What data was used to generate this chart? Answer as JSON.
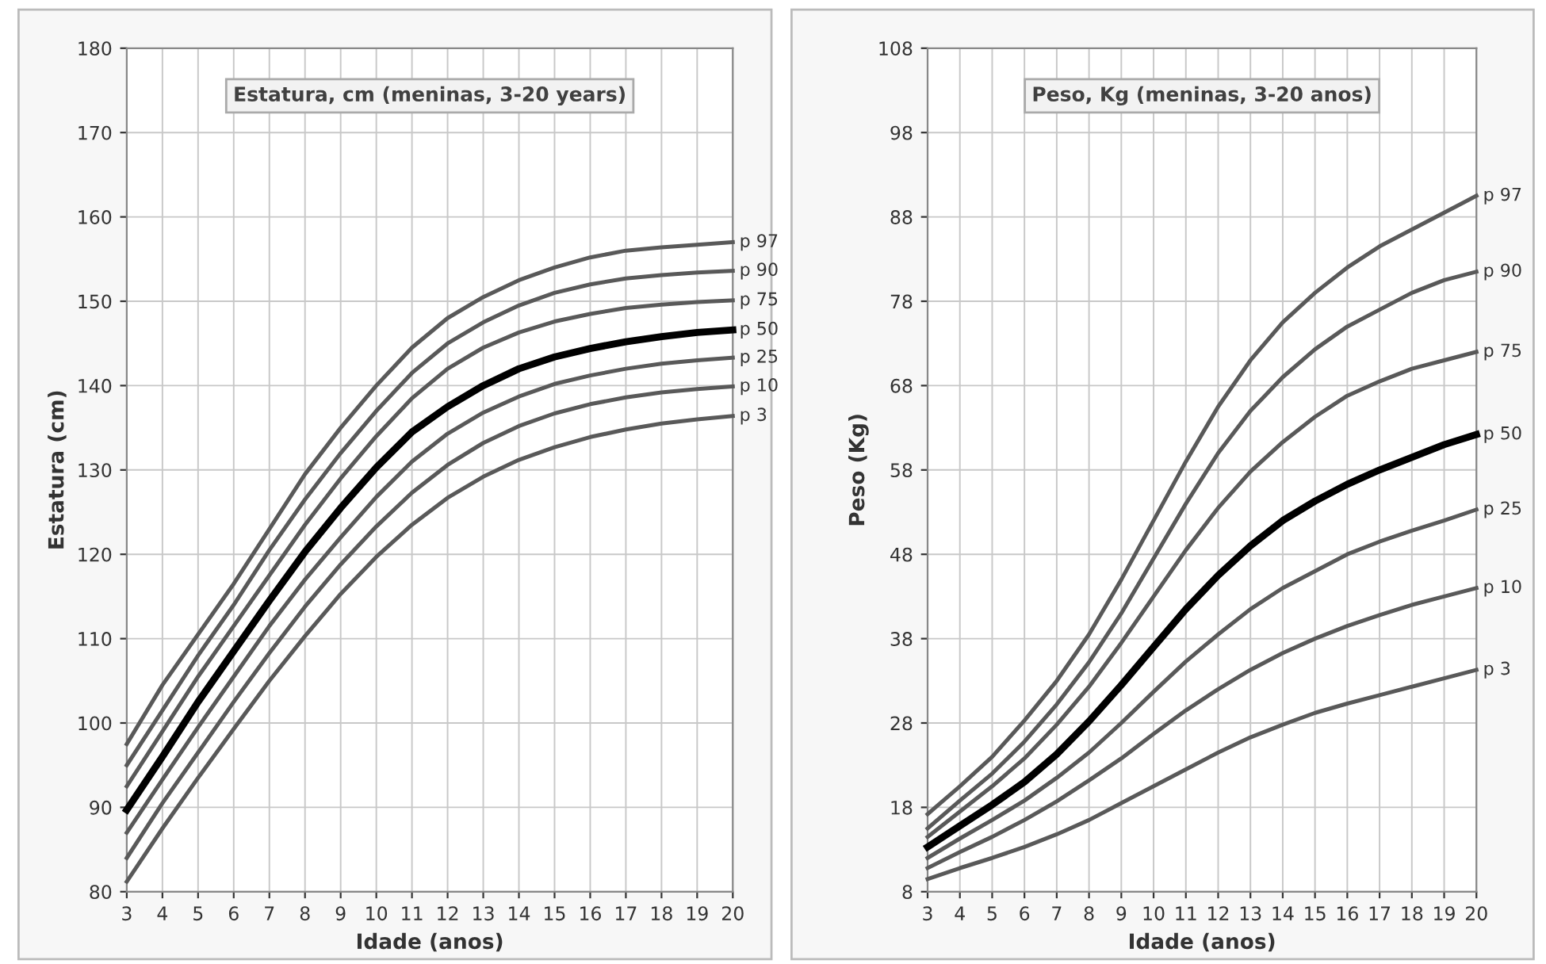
{
  "chart_data": [
    {
      "type": "line",
      "annotations": [
        "Estatura, cm (meninas, 3-20 years)"
      ],
      "xlabel": "Idade (anos)",
      "ylabel": "Estatura (cm)",
      "x": [
        3,
        4,
        5,
        6,
        7,
        8,
        9,
        10,
        11,
        12,
        13,
        14,
        15,
        16,
        17,
        18,
        19,
        20
      ],
      "xlim": [
        3,
        20
      ],
      "xticks": [
        3,
        4,
        5,
        6,
        7,
        8,
        9,
        10,
        11,
        12,
        13,
        14,
        15,
        16,
        17,
        18,
        19,
        20
      ],
      "ylim": [
        80,
        180
      ],
      "yticks": [
        80,
        90,
        100,
        110,
        120,
        130,
        140,
        150,
        160,
        170,
        180
      ],
      "grid": true,
      "series": [
        {
          "name": "p 97",
          "color": "#595959",
          "values": [
            97.5,
            104.5,
            110.5,
            116.5,
            123,
            129.5,
            135,
            140,
            144.5,
            148,
            150.5,
            152.5,
            154,
            155.2,
            156,
            156.4,
            156.7,
            157
          ]
        },
        {
          "name": "p 90",
          "color": "#595959",
          "values": [
            95,
            101.5,
            108,
            114,
            120.5,
            126.5,
            132,
            137,
            141.5,
            145,
            147.5,
            149.5,
            151,
            152,
            152.7,
            153.1,
            153.4,
            153.6
          ]
        },
        {
          "name": "p 75",
          "color": "#595959",
          "values": [
            92.5,
            99,
            105.5,
            111.5,
            117.5,
            123.5,
            129,
            134,
            138.5,
            142,
            144.5,
            146.3,
            147.6,
            148.5,
            149.2,
            149.6,
            149.9,
            150.1
          ]
        },
        {
          "name": "p 50",
          "color": "#000000",
          "values": [
            89.7,
            96,
            102.5,
            108.5,
            114.5,
            120.3,
            125.5,
            130.3,
            134.5,
            137.5,
            140,
            142,
            143.4,
            144.4,
            145.2,
            145.8,
            146.3,
            146.6
          ]
        },
        {
          "name": "p 25",
          "color": "#595959",
          "values": [
            87,
            93.3,
            99.5,
            105.5,
            111.5,
            117,
            122,
            126.8,
            131,
            134.3,
            136.8,
            138.7,
            140.2,
            141.2,
            142,
            142.6,
            143,
            143.3
          ]
        },
        {
          "name": "p 10",
          "color": "#595959",
          "values": [
            84,
            90.5,
            96.5,
            102.5,
            108.3,
            113.8,
            118.8,
            123.3,
            127.3,
            130.6,
            133.2,
            135.2,
            136.7,
            137.8,
            138.6,
            139.2,
            139.6,
            139.9
          ]
        },
        {
          "name": "p 3",
          "color": "#595959",
          "values": [
            81.2,
            87.5,
            93.5,
            99.3,
            105,
            110.3,
            115.3,
            119.7,
            123.5,
            126.7,
            129.2,
            131.2,
            132.7,
            133.9,
            134.8,
            135.5,
            136,
            136.4
          ]
        }
      ]
    },
    {
      "type": "line",
      "annotations": [
        "Peso, Kg (meninas, 3-20 anos)"
      ],
      "xlabel": "Idade (anos)",
      "ylabel": "Peso (Kg)",
      "x": [
        3,
        4,
        5,
        6,
        7,
        8,
        9,
        10,
        11,
        12,
        13,
        14,
        15,
        16,
        17,
        18,
        19,
        20
      ],
      "xlim": [
        3,
        20
      ],
      "xticks": [
        3,
        4,
        5,
        6,
        7,
        8,
        9,
        10,
        11,
        12,
        13,
        14,
        15,
        16,
        17,
        18,
        19,
        20
      ],
      "ylim": [
        8,
        108
      ],
      "yticks": [
        8,
        18,
        28,
        38,
        48,
        58,
        68,
        78,
        88,
        98,
        108
      ],
      "grid": true,
      "series": [
        {
          "name": "p 97",
          "color": "#595959",
          "values": [
            17.2,
            20.5,
            24,
            28.3,
            33,
            38.5,
            45,
            52,
            59,
            65.5,
            71,
            75.5,
            79,
            82,
            84.5,
            86.5,
            88.5,
            90.5
          ]
        },
        {
          "name": "p 90",
          "color": "#595959",
          "values": [
            15.5,
            18.8,
            22,
            25.8,
            30.2,
            35.2,
            41,
            47.5,
            54,
            60,
            65,
            69,
            72.3,
            75,
            77,
            79,
            80.5,
            81.5
          ]
        },
        {
          "name": "p 75",
          "color": "#595959",
          "values": [
            14.5,
            17.5,
            20.5,
            23.8,
            27.8,
            32.3,
            37.5,
            43,
            48.5,
            53.5,
            57.8,
            61.3,
            64.3,
            66.8,
            68.5,
            70,
            71,
            72
          ]
        },
        {
          "name": "p 50",
          "color": "#000000",
          "values": [
            13.3,
            15.8,
            18.3,
            21,
            24.3,
            28.2,
            32.5,
            37,
            41.5,
            45.5,
            49,
            52,
            54.3,
            56.3,
            58,
            59.5,
            61,
            62.2
          ]
        },
        {
          "name": "p 25",
          "color": "#595959",
          "values": [
            12,
            14.3,
            16.5,
            18.8,
            21.5,
            24.5,
            28,
            31.7,
            35.3,
            38.5,
            41.5,
            44,
            46,
            48,
            49.5,
            50.8,
            52,
            53.3
          ]
        },
        {
          "name": "p 10",
          "color": "#595959",
          "values": [
            10.8,
            12.7,
            14.5,
            16.5,
            18.7,
            21.2,
            23.8,
            26.7,
            29.5,
            32,
            34.3,
            36.3,
            38,
            39.5,
            40.8,
            42,
            43,
            44
          ]
        },
        {
          "name": "p 3",
          "color": "#595959",
          "values": [
            9.5,
            10.8,
            12,
            13.3,
            14.8,
            16.5,
            18.5,
            20.5,
            22.5,
            24.5,
            26.3,
            27.8,
            29.2,
            30.3,
            31.3,
            32.3,
            33.3,
            34.3
          ]
        }
      ]
    }
  ]
}
